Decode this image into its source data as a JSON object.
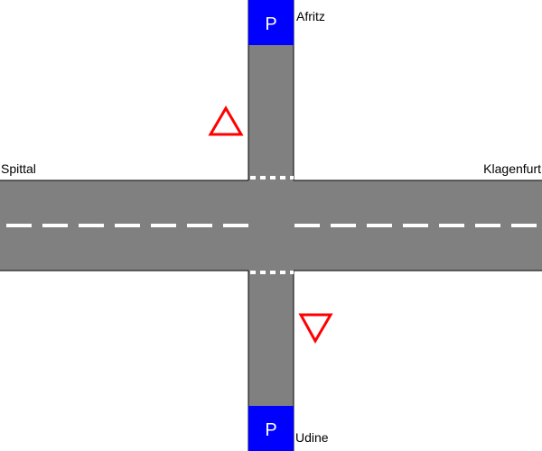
{
  "destinations": {
    "west": "Spittal",
    "east": "Klagenfurt",
    "north": "Afritz",
    "south": "Udine"
  },
  "parking_sign_letter": "P",
  "colors": {
    "background": "#ffffff",
    "road": "#808080",
    "road_edge": "#000000",
    "lane_marking": "#ffffff",
    "parking_sign": "#0000ff",
    "yield_sign": "#ff0000"
  },
  "icons": {
    "north_yield": "yield-triangle-pointing-up",
    "south_yield": "yield-triangle-pointing-down",
    "parking": "parking-sign"
  }
}
